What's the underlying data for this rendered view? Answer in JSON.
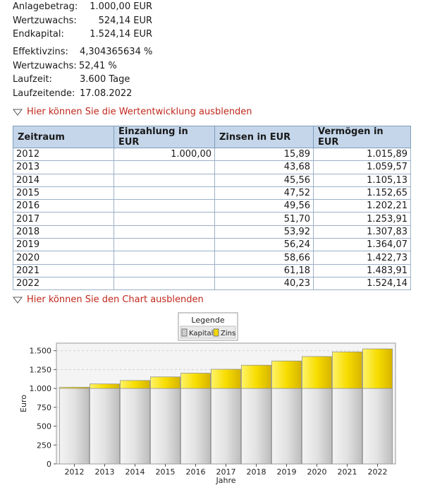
{
  "summary": {
    "anlagebetrag_label": "Anlagebetrag:",
    "anlagebetrag_value": "1.000,00 EUR",
    "wertzuwachs_label": "Wertzuwachs:",
    "wertzuwachs_value": "524,14 EUR",
    "endkapital_label": "Endkapital:",
    "endkapital_value": "1.524,14 EUR",
    "effektivzins_label": "Effektivzins:",
    "effektivzins_value": "4,304365634 %",
    "wertzuwachs_pct_label": "Wertzuwachs:",
    "wertzuwachs_pct_value": "52,41 %",
    "laufzeit_label": "Laufzeit:",
    "laufzeit_value": "3.600 Tage",
    "laufzeitende_label": "Laufzeitende:",
    "laufzeitende_value": "17.08.2022"
  },
  "toggles": {
    "table": "Hier können Sie die Wertentwicklung ausblenden",
    "chart": "Hier können Sie den Chart ausblenden"
  },
  "table": {
    "headers": [
      "Zeitraum",
      "Einzahlung in EUR",
      "Zinsen in EUR",
      "Vermögen in EUR"
    ],
    "rows": [
      [
        "2012",
        "1.000,00",
        "15,89",
        "1.015,89"
      ],
      [
        "2013",
        "",
        "43,68",
        "1.059,57"
      ],
      [
        "2014",
        "",
        "45,56",
        "1.105,13"
      ],
      [
        "2015",
        "",
        "47,52",
        "1.152,65"
      ],
      [
        "2016",
        "",
        "49,56",
        "1.202,21"
      ],
      [
        "2017",
        "",
        "51,70",
        "1.253,91"
      ],
      [
        "2018",
        "",
        "53,92",
        "1.307,83"
      ],
      [
        "2019",
        "",
        "56,24",
        "1.364,07"
      ],
      [
        "2020",
        "",
        "58,66",
        "1.422,73"
      ],
      [
        "2021",
        "",
        "61,18",
        "1.483,91"
      ],
      [
        "2022",
        "",
        "40,23",
        "1.524,14"
      ]
    ]
  },
  "chart_data": {
    "type": "bar",
    "stacked": true,
    "categories": [
      "2012",
      "2013",
      "2014",
      "2015",
      "2016",
      "2017",
      "2018",
      "2019",
      "2020",
      "2021",
      "2022"
    ],
    "series": [
      {
        "name": "Kapital",
        "color": "#d8d8d8",
        "values": [
          1000,
          1000,
          1000,
          1000,
          1000,
          1000,
          1000,
          1000,
          1000,
          1000,
          1000
        ]
      },
      {
        "name": "Zins",
        "color": "#f5d800",
        "values": [
          15.89,
          59.57,
          105.13,
          152.65,
          202.21,
          253.91,
          307.83,
          364.07,
          422.73,
          483.91,
          524.14
        ]
      }
    ],
    "legend_title": "Legende",
    "legend_position": "top-center",
    "xlabel": "Jahre",
    "ylabel": "Euro",
    "ylim": [
      0,
      1600
    ],
    "yticks": [
      0,
      250,
      500,
      750,
      1000,
      1250,
      1500
    ],
    "ytick_labels": [
      "0",
      "250",
      "500",
      "750",
      "1.000",
      "1.250",
      "1.500"
    ],
    "grid": true
  }
}
